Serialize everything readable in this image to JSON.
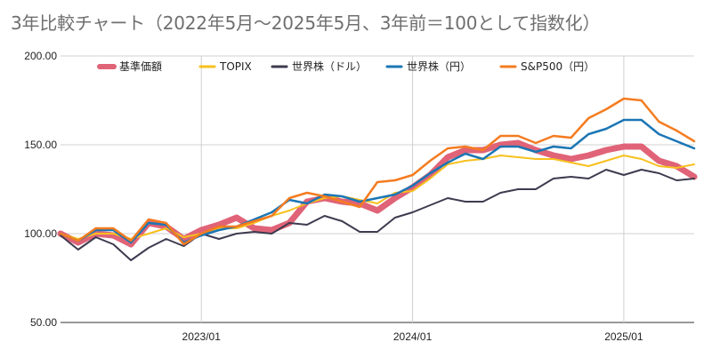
{
  "chart_data": {
    "type": "line",
    "title": "3年比較チャート（2022年5月〜2025年5月、3年前＝100として指数化）",
    "xlabel": "",
    "ylabel": "",
    "ylim": [
      50,
      200
    ],
    "y_ticks": [
      50,
      100,
      150,
      200
    ],
    "y_tick_labels": [
      "50.00",
      "100.00",
      "150.00",
      "200.00"
    ],
    "x_ticks": [
      "2023/01",
      "2024/01",
      "2025/01"
    ],
    "x": [
      "2022/05",
      "2022/06",
      "2022/07",
      "2022/08",
      "2022/09",
      "2022/10",
      "2022/11",
      "2022/12",
      "2023/01",
      "2023/02",
      "2023/03",
      "2023/04",
      "2023/05",
      "2023/06",
      "2023/07",
      "2023/08",
      "2023/09",
      "2023/10",
      "2023/11",
      "2023/12",
      "2024/01",
      "2024/02",
      "2024/03",
      "2024/04",
      "2024/05",
      "2024/06",
      "2024/07",
      "2024/08",
      "2024/09",
      "2024/10",
      "2024/11",
      "2024/12",
      "2025/01",
      "2025/02",
      "2025/03",
      "2025/04",
      "2025/05"
    ],
    "grid": true,
    "legend_position": "top",
    "series": [
      {
        "name": "基準価額",
        "color": "#e06377",
        "values": [
          100,
          95,
          100,
          99,
          94,
          106,
          104,
          97,
          102,
          105,
          109,
          103,
          102,
          106,
          118,
          120,
          118,
          117,
          113,
          120,
          126,
          133,
          143,
          147,
          147,
          150,
          151,
          147,
          144,
          142,
          144,
          147,
          149,
          149,
          141,
          138,
          132
        ]
      },
      {
        "name": "TOPIX",
        "color": "#f7c01e",
        "values": [
          100,
          97,
          100,
          100,
          97,
          100,
          103,
          98,
          100,
          103,
          103,
          106,
          110,
          113,
          117,
          120,
          121,
          119,
          117,
          123,
          124,
          131,
          139,
          141,
          142,
          144,
          143,
          142,
          142,
          140,
          138,
          141,
          144,
          142,
          138,
          137,
          139
        ]
      },
      {
        "name": "世界株（ドル）",
        "color": "#3d3b4f",
        "values": [
          99,
          91,
          98,
          94,
          85,
          92,
          97,
          93,
          100,
          97,
          100,
          101,
          100,
          106,
          105,
          110,
          107,
          101,
          101,
          109,
          112,
          116,
          120,
          118,
          118,
          123,
          125,
          125,
          131,
          132,
          131,
          136,
          133,
          136,
          134,
          130,
          131
        ]
      },
      {
        "name": "世界株（円）",
        "color": "#1b76b4",
        "values": [
          100,
          96,
          102,
          102,
          95,
          106,
          105,
          95,
          99,
          102,
          104,
          108,
          112,
          119,
          117,
          122,
          121,
          118,
          120,
          122,
          127,
          134,
          140,
          145,
          142,
          149,
          149,
          146,
          149,
          148,
          156,
          159,
          164,
          164,
          156,
          152,
          148
        ]
      },
      {
        "name": "S&P500（円）",
        "color": "#f47c20",
        "values": [
          100,
          96,
          103,
          103,
          96,
          108,
          106,
          94,
          100,
          104,
          104,
          107,
          110,
          120,
          123,
          121,
          118,
          115,
          129,
          130,
          133,
          141,
          148,
          149,
          147,
          155,
          155,
          151,
          155,
          154,
          165,
          170,
          176,
          175,
          163,
          158,
          152
        ]
      }
    ]
  }
}
